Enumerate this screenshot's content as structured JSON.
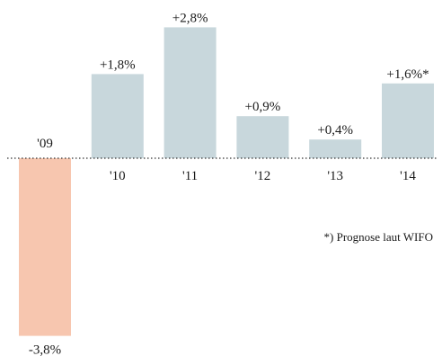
{
  "chart_data": {
    "type": "bar",
    "categories": [
      "'09",
      "'10",
      "'11",
      "'12",
      "'13",
      "'14"
    ],
    "values": [
      -3.8,
      1.8,
      2.8,
      0.9,
      0.4,
      1.6
    ],
    "value_labels": [
      "-3,8%",
      "+1,8%",
      "+2,8%",
      "+0,9%",
      "+0,4%",
      "+1,6%*"
    ],
    "ylim": [
      -4.3,
      3.1
    ],
    "grid": false,
    "zero_line": "dotted",
    "colors": {
      "negative": "#f7c6af",
      "positive": "#c8d7dc",
      "text": "#1a1a1a",
      "axis": "#333333"
    },
    "footnote": "*) Prognose laut WIFO"
  }
}
